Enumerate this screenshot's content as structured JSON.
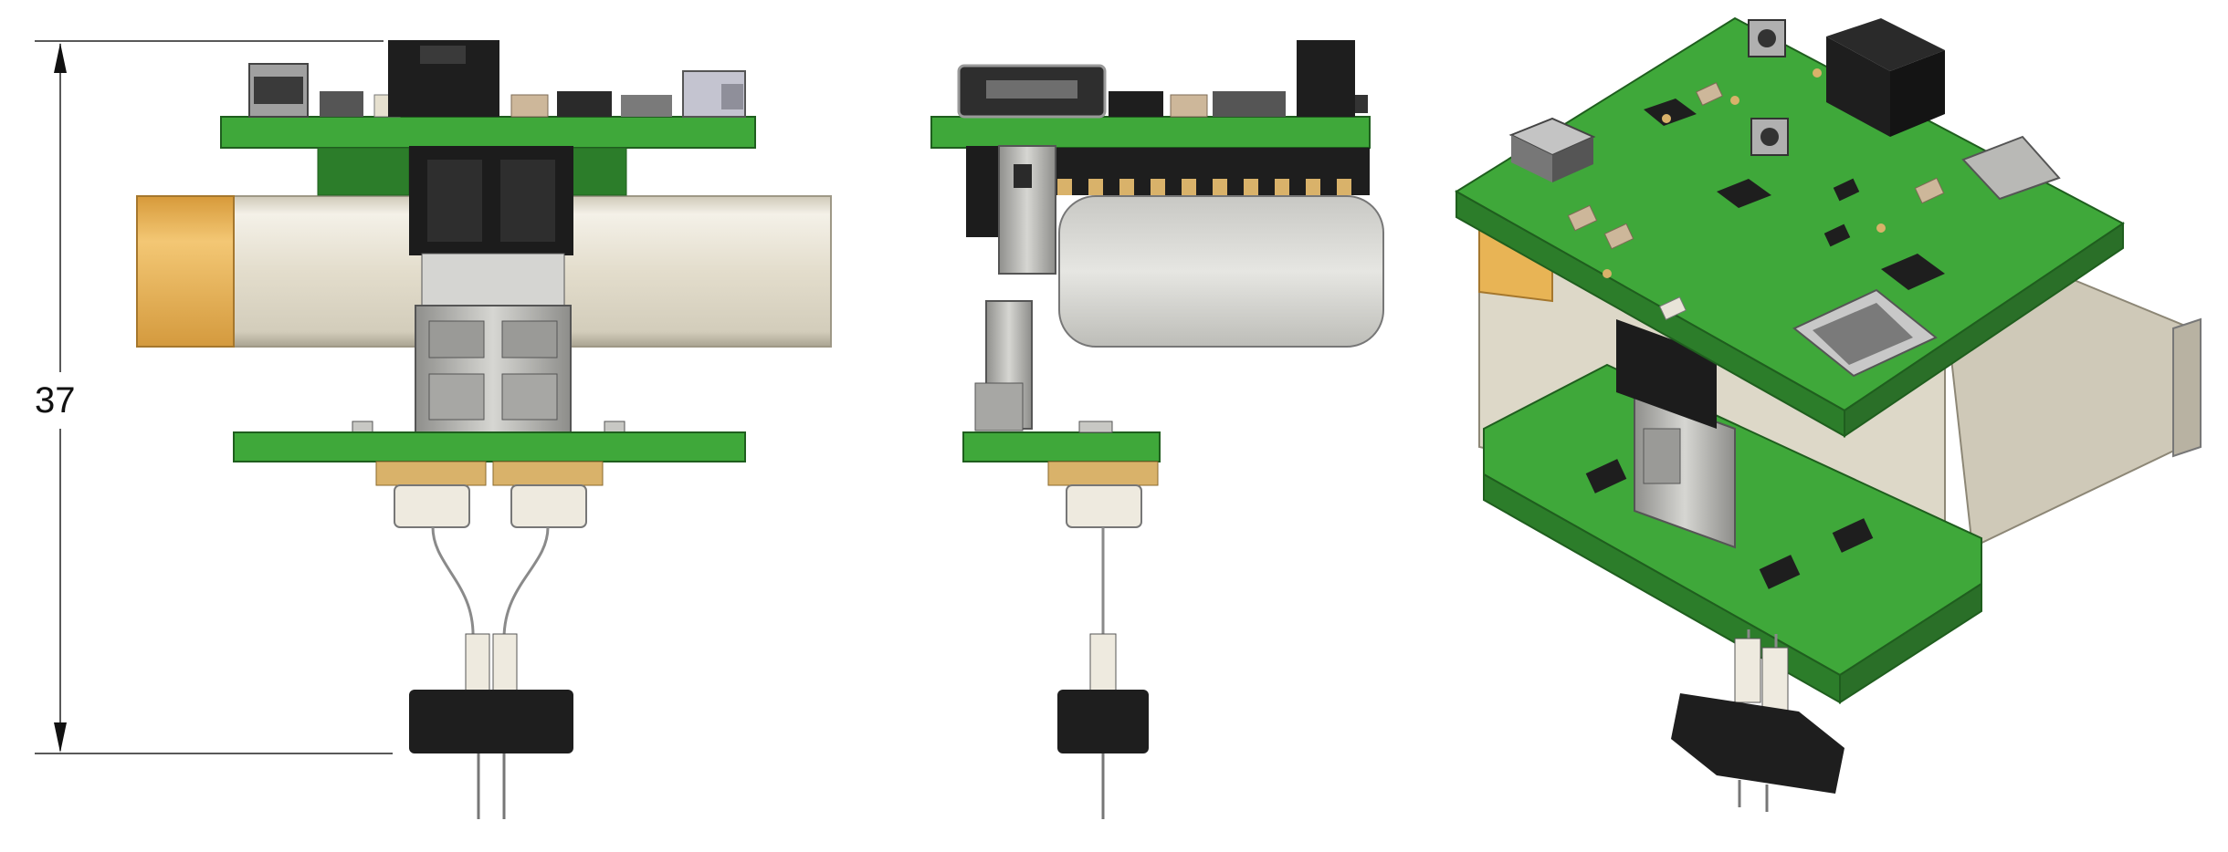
{
  "dimension": {
    "value": "37"
  },
  "views": [
    {
      "id": "front",
      "name": "front-view"
    },
    {
      "id": "side",
      "name": "side-view"
    },
    {
      "id": "iso",
      "name": "isometric-view"
    }
  ],
  "colors": {
    "pcb": "#3fa83a",
    "pcb_dark": "#2c7d2a",
    "pcb_edge": "#1f5e1e",
    "battery": "#ddd8c8",
    "battery_shade": "#c9c3b2",
    "battery_cap": "#e8b455",
    "connector_metal": "#b9b9b6",
    "connector_dark": "#1c1c1c",
    "brass": "#d9b26a",
    "ceramic": "#eeeadf",
    "wire": "#8a8a8a",
    "component_black": "#1e1e1e",
    "component_tan": "#cdb79a"
  }
}
